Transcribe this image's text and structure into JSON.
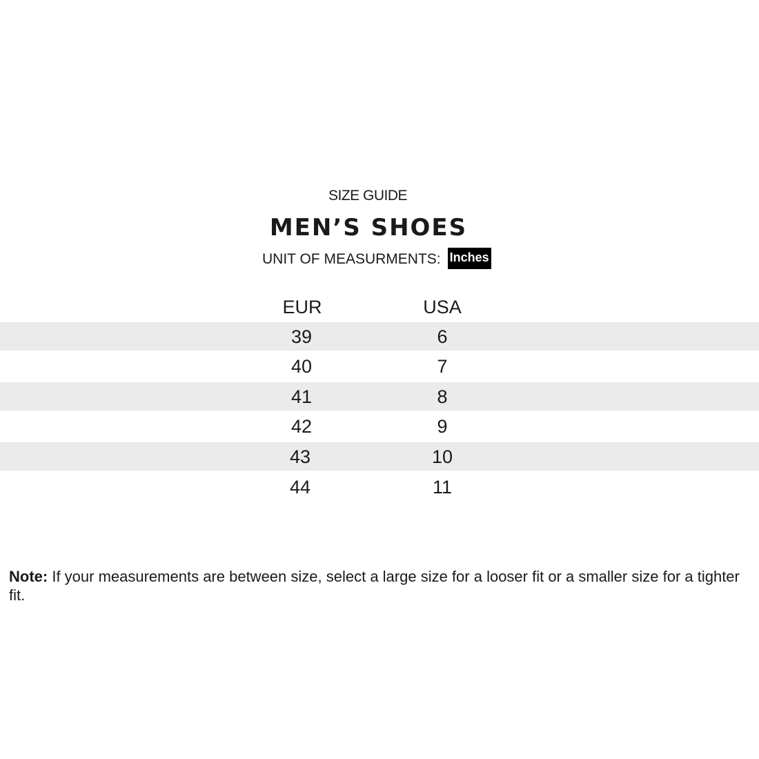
{
  "kicker": "SIZE GUIDE",
  "title": "MEN’S SHOES",
  "unit_label": "UNIT OF MEASURMENTS:",
  "unit_value": "Inches",
  "columns": [
    "EUR",
    "USA"
  ],
  "rows": [
    {
      "eur": "39",
      "usa": "6"
    },
    {
      "eur": "40",
      "usa": "7"
    },
    {
      "eur": "41",
      "usa": "8"
    },
    {
      "eur": "42",
      "usa": "9"
    },
    {
      "eur": "43",
      "usa": "10"
    },
    {
      "eur": "44",
      "usa": "11"
    }
  ],
  "note": {
    "label": "Note:",
    "text": " If your measurements are between size, select a large size for a looser fit or a smaller size for a tighter fit."
  },
  "colors": {
    "stripe": "#ebebeb",
    "badge": "#000000"
  }
}
